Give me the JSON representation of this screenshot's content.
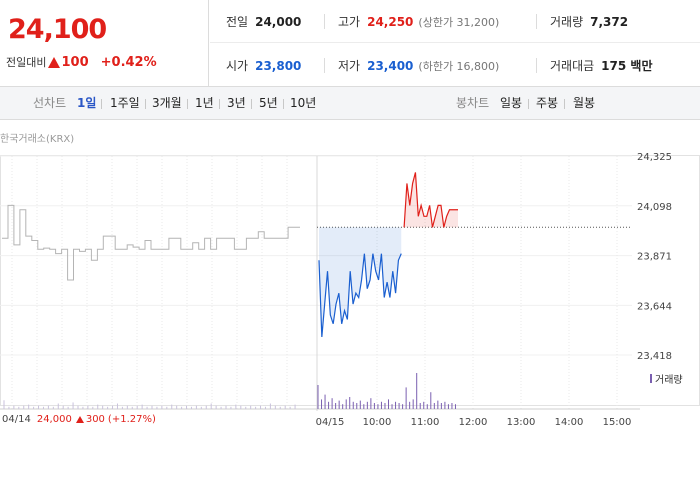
{
  "quote": {
    "price": "24,100",
    "change_label": "전일대비",
    "change_amount": "100",
    "change_percent": "+0.42%",
    "prev_close_label": "전일",
    "prev_close": "24,000",
    "high_label": "고가",
    "high": "24,250",
    "upper_limit": "(상한가 31,200)",
    "volume_label": "거래량",
    "volume": "7,372",
    "open_label": "시가",
    "open": "23,800",
    "low_label": "저가",
    "low": "23,400",
    "lower_limit": "(하한가 16,800)",
    "value_label": "거래대금",
    "value": "175 백만"
  },
  "tabs": {
    "line_label": "선차트",
    "line_periods": [
      "1일",
      "1주일",
      "3개월",
      "1년",
      "3년",
      "5년",
      "10년"
    ],
    "active": "1일",
    "candle_label": "봉차트",
    "candle_periods": [
      "일봉",
      "주봉",
      "월봉"
    ]
  },
  "chart": {
    "source": "한국거래소(KRX)",
    "volume_legend": "거래량",
    "prev_info": {
      "date": "04/14",
      "close": "24,000",
      "change": "300",
      "pct": "(+1.27%)"
    },
    "today_date": "04/15",
    "time_labels": [
      "10:00",
      "11:00",
      "12:00",
      "13:00",
      "14:00",
      "15:00"
    ],
    "colors": {
      "up": "#e0201a",
      "down": "#1a5fd0",
      "prev": "#b4b4b4",
      "volume": "#7a5fb0"
    }
  },
  "chart_data": {
    "type": "line",
    "y_ticks": [
      24325,
      24098,
      23871,
      23644,
      23418
    ],
    "ylim": [
      23418,
      24325
    ],
    "baseline": 24000,
    "prev_day": [
      23950,
      24100,
      23920,
      24080,
      23960,
      23940,
      23900,
      23905,
      23900,
      23880,
      23900,
      23760,
      23900,
      23890,
      23900,
      23850,
      23900,
      23960,
      23960,
      23900,
      23900,
      23920,
      23910,
      23900,
      23940,
      23900,
      23900,
      23900,
      23950,
      23950,
      23900,
      23900,
      23930,
      23900,
      23950,
      23900,
      23950,
      23950,
      23950,
      23900,
      23900,
      23950,
      23950,
      23980,
      23950,
      23950,
      23950,
      23950,
      24000,
      24000,
      24000
    ],
    "today": [
      23850,
      23500,
      23650,
      23800,
      23600,
      23560,
      23650,
      23700,
      23560,
      23620,
      23580,
      23800,
      23650,
      23700,
      23680,
      23760,
      23880,
      23720,
      23760,
      23880,
      23800,
      23760,
      23880,
      23680,
      23750,
      23680,
      23800,
      23700,
      23850,
      23880,
      24000,
      24200,
      24100,
      24200,
      24250,
      24050,
      24100,
      24050,
      24050,
      24100,
      24000,
      24050,
      24100,
      24100,
      24000,
      24050,
      24080,
      24080,
      24080,
      24080
    ],
    "volume_prev": [
      8,
      2,
      3,
      2,
      3,
      4,
      2,
      3,
      2,
      3,
      2,
      5,
      3,
      2,
      6,
      3,
      2,
      3,
      2,
      4,
      3,
      2,
      3,
      5,
      2,
      3,
      2,
      3,
      4,
      2,
      3,
      2,
      3,
      2,
      4,
      3,
      2,
      3,
      2,
      3,
      2,
      3,
      5,
      3,
      2,
      3,
      2,
      4,
      3,
      2,
      3,
      2,
      3,
      2,
      5,
      3,
      2,
      3,
      2,
      4
    ],
    "volume_today": [
      20,
      8,
      12,
      6,
      9,
      5,
      7,
      4,
      8,
      10,
      6,
      5,
      7,
      4,
      6,
      9,
      5,
      4,
      6,
      5,
      8,
      4,
      6,
      5,
      4,
      18,
      6,
      8,
      30,
      5,
      6,
      4,
      14,
      5,
      7,
      5,
      6,
      4,
      5,
      4
    ],
    "ylabel": "",
    "xlabel": ""
  }
}
